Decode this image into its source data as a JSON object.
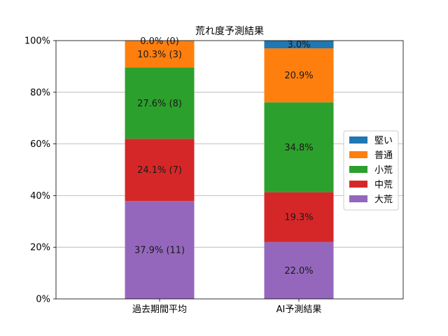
{
  "chart_data": {
    "type": "bar",
    "stacked": true,
    "title": "荒れ度予測結果",
    "categories": [
      "過去期間平均",
      "AI予測結果"
    ],
    "y_ticks": [
      "0%",
      "20%",
      "40%",
      "60%",
      "80%",
      "100%"
    ],
    "ylim": [
      0,
      100
    ],
    "grid": "horizontal",
    "legend_position": "center-right",
    "series": [
      {
        "name": "大荒",
        "color": "#9467bd",
        "values": [
          37.9,
          22.0
        ],
        "labels": [
          "37.9% (11)",
          "22.0%"
        ]
      },
      {
        "name": "中荒",
        "color": "#d62728",
        "values": [
          24.1,
          19.3
        ],
        "labels": [
          "24.1% (7)",
          "19.3%"
        ]
      },
      {
        "name": "小荒",
        "color": "#2ca02c",
        "values": [
          27.6,
          34.8
        ],
        "labels": [
          "27.6% (8)",
          "34.8%"
        ]
      },
      {
        "name": "普通",
        "color": "#ff7f0e",
        "values": [
          10.3,
          20.9
        ],
        "labels": [
          "10.3% (3)",
          "20.9%"
        ]
      },
      {
        "name": "堅い",
        "color": "#1f77b4",
        "values": [
          0.0,
          3.0
        ],
        "labels": [
          "0.0% (0)",
          "3.0%"
        ]
      }
    ],
    "legend_order": [
      "堅い",
      "普通",
      "小荒",
      "中荒",
      "大荒"
    ]
  }
}
